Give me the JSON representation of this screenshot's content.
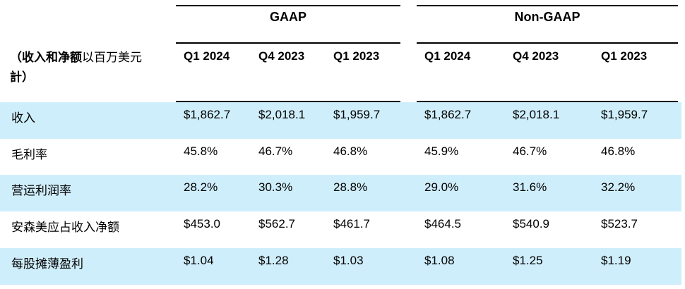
{
  "header": {
    "gaap_title": "GAAP",
    "non_gaap_title": "Non-GAAP",
    "label_bold": "（收入和净额",
    "label_light": "以百万美元",
    "label_line2": "計）",
    "columns": [
      "Q1 2024",
      "Q4 2023",
      "Q1 2023",
      "Q1 2024",
      "Q4 2023",
      "Q1 2023"
    ]
  },
  "rows": [
    {
      "label": "收入",
      "values": [
        "$1,862.7",
        "$2,018.1",
        "$1,959.7",
        "$1,862.7",
        "$2,018.1",
        "$1,959.7"
      ]
    },
    {
      "label": "毛利率",
      "values": [
        "45.8%",
        "46.7%",
        "46.8%",
        "45.9%",
        "46.7%",
        "46.8%"
      ]
    },
    {
      "label": "营运利润率",
      "values": [
        "28.2%",
        "30.3%",
        "28.8%",
        "29.0%",
        "31.6%",
        "32.2%"
      ]
    },
    {
      "label": "安森美应占收入净额",
      "values": [
        "$453.0",
        "$562.7",
        "$461.7",
        "$464.5",
        "$540.9",
        "$523.7"
      ]
    },
    {
      "label": "每股摊薄盈利",
      "values": [
        "$1.04",
        "$1.28",
        "$1.03",
        "$1.08",
        "$1.25",
        "$1.19"
      ]
    }
  ],
  "colors": {
    "row_shade": "#cfeefb",
    "rule": "#000000"
  }
}
